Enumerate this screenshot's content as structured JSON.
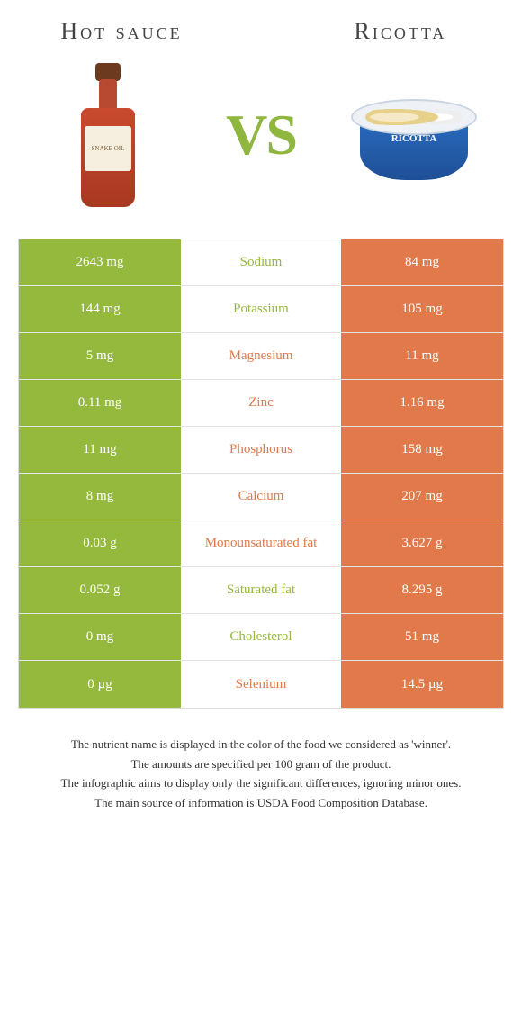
{
  "colors": {
    "left": "#94b93c",
    "right": "#e2794a",
    "vs": "#8fb63f"
  },
  "header": {
    "left_title": "Hot sauce",
    "right_title": "Ricotta",
    "vs": "VS",
    "left_product_label": "SNAKE OIL",
    "right_product_label": "RICOTTA"
  },
  "rows": [
    {
      "left": "2643 mg",
      "label": "Sodium",
      "right": "84 mg",
      "winner": "left"
    },
    {
      "left": "144 mg",
      "label": "Potassium",
      "right": "105 mg",
      "winner": "left"
    },
    {
      "left": "5 mg",
      "label": "Magnesium",
      "right": "11 mg",
      "winner": "right"
    },
    {
      "left": "0.11 mg",
      "label": "Zinc",
      "right": "1.16 mg",
      "winner": "right"
    },
    {
      "left": "11 mg",
      "label": "Phosphorus",
      "right": "158 mg",
      "winner": "right"
    },
    {
      "left": "8 mg",
      "label": "Calcium",
      "right": "207 mg",
      "winner": "right"
    },
    {
      "left": "0.03 g",
      "label": "Monounsaturated fat",
      "right": "3.627 g",
      "winner": "right"
    },
    {
      "left": "0.052 g",
      "label": "Saturated fat",
      "right": "8.295 g",
      "winner": "left"
    },
    {
      "left": "0 mg",
      "label": "Cholesterol",
      "right": "51 mg",
      "winner": "left"
    },
    {
      "left": "0 µg",
      "label": "Selenium",
      "right": "14.5 µg",
      "winner": "right"
    }
  ],
  "footnotes": [
    "The nutrient name is displayed in the color of the food we considered as 'winner'.",
    "The amounts are specified per 100 gram of the product.",
    "The infographic aims to display only the significant differences, ignoring minor ones.",
    "The main source of information is USDA Food Composition Database."
  ]
}
